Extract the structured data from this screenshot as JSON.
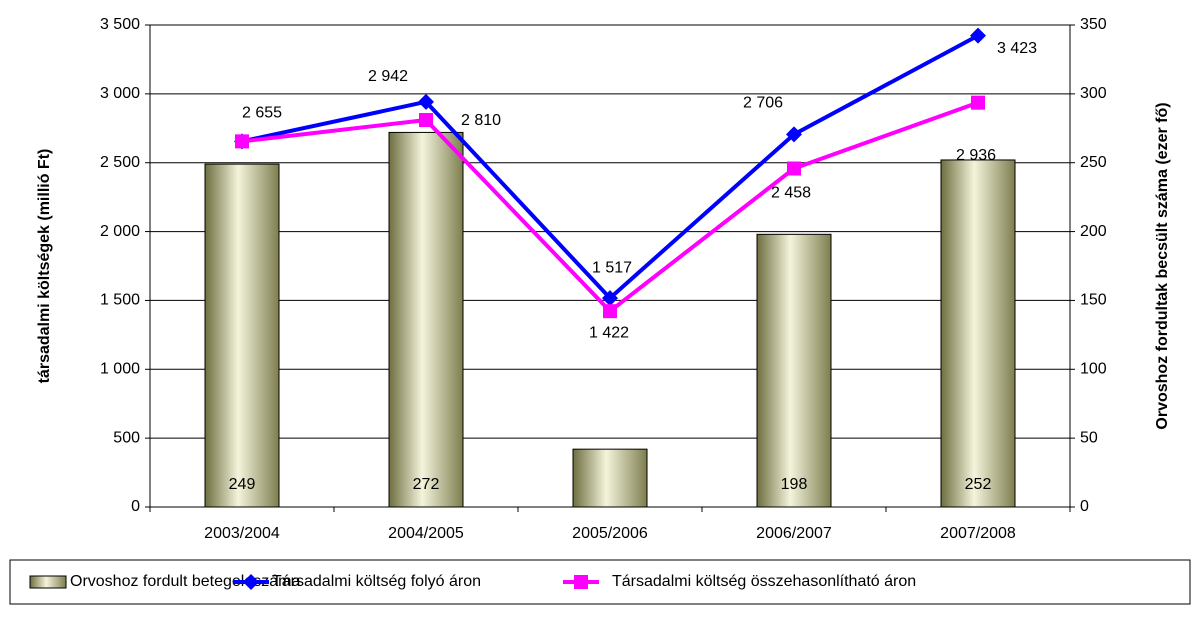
{
  "chart_data": {
    "type": "bar_line",
    "categories": [
      "2003/2004",
      "2004/2005",
      "2005/2006",
      "2006/2007",
      "2007/2008"
    ],
    "ylabel": "társadalmi költségek (millió Ft)",
    "y2label": "Orvoshoz fordultak becsült száma (ezer fő)",
    "ylim": [
      0,
      3500
    ],
    "yticks": [
      0,
      500,
      {
        "value": 1000,
        "label": "1 000"
      },
      {
        "value": 1500,
        "label": "1 500"
      },
      {
        "value": 2000,
        "label": "2 000"
      },
      {
        "value": 2500,
        "label": "2 500"
      },
      {
        "value": 3000,
        "label": "3 000"
      },
      {
        "value": 3500,
        "label": "3 500"
      }
    ],
    "y2lim": [
      0,
      350
    ],
    "y2ticks": [
      0,
      50,
      100,
      150,
      200,
      250,
      300,
      350
    ],
    "grid": true,
    "legend": "bottom",
    "series": [
      {
        "name": "Orvoshoz fordult betegek száma",
        "type": "bar",
        "axis": "y2",
        "color": "#c8c896",
        "values": [
          249,
          272,
          42,
          198,
          252
        ]
      },
      {
        "name": "Társadalmi költség folyó áron",
        "type": "line",
        "color": "#0000ff",
        "values": [
          2655,
          2942,
          1517,
          2706,
          3423
        ],
        "value_labels": [
          "2 655",
          "2 942",
          "1 517",
          "2 706",
          "3 423"
        ]
      },
      {
        "name": "Társadalmi költség összehasonlítható áron",
        "type": "line",
        "color": "#ff00ff",
        "values": [
          2655,
          2810,
          1422,
          2458,
          2936
        ],
        "value_labels": [
          null,
          "2 810",
          "1 422",
          "2 458",
          "2 936"
        ]
      }
    ]
  }
}
